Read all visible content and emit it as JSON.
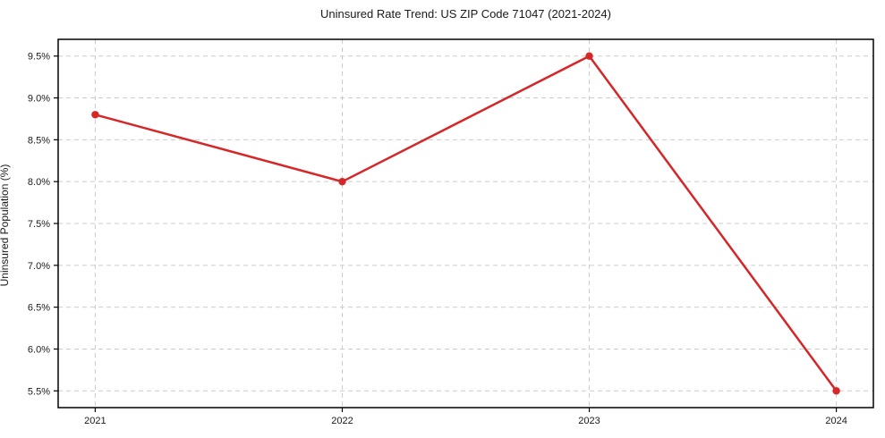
{
  "chart_data": {
    "type": "line",
    "title": "Uninsured Rate Trend: US ZIP Code 71047 (2021-2024)",
    "xlabel": "",
    "ylabel": "Uninsured Population (%)",
    "x": [
      2021,
      2022,
      2023,
      2024
    ],
    "series": [
      {
        "name": "Uninsured rate",
        "values": [
          8.8,
          8.0,
          9.5,
          5.5
        ]
      }
    ],
    "x_tick_labels": [
      "2021",
      "2022",
      "2023",
      "2024"
    ],
    "y_ticks": [
      5.5,
      6.0,
      6.5,
      7.0,
      7.5,
      8.0,
      8.5,
      9.0,
      9.5
    ],
    "y_tick_labels": [
      "5.5%",
      "6.0%",
      "6.5%",
      "7.0%",
      "7.5%",
      "8.0%",
      "8.5%",
      "9.0%",
      "9.5%"
    ],
    "xlim": [
      2020.85,
      2024.15
    ],
    "ylim": [
      5.3,
      9.7
    ],
    "grid": true,
    "legend": "none",
    "colors": {
      "line": "#d62728",
      "marker": "#d62728",
      "grid": "#cccccc",
      "axis": "#000000",
      "text": "#1a1a1a",
      "background": "#ffffff"
    }
  }
}
